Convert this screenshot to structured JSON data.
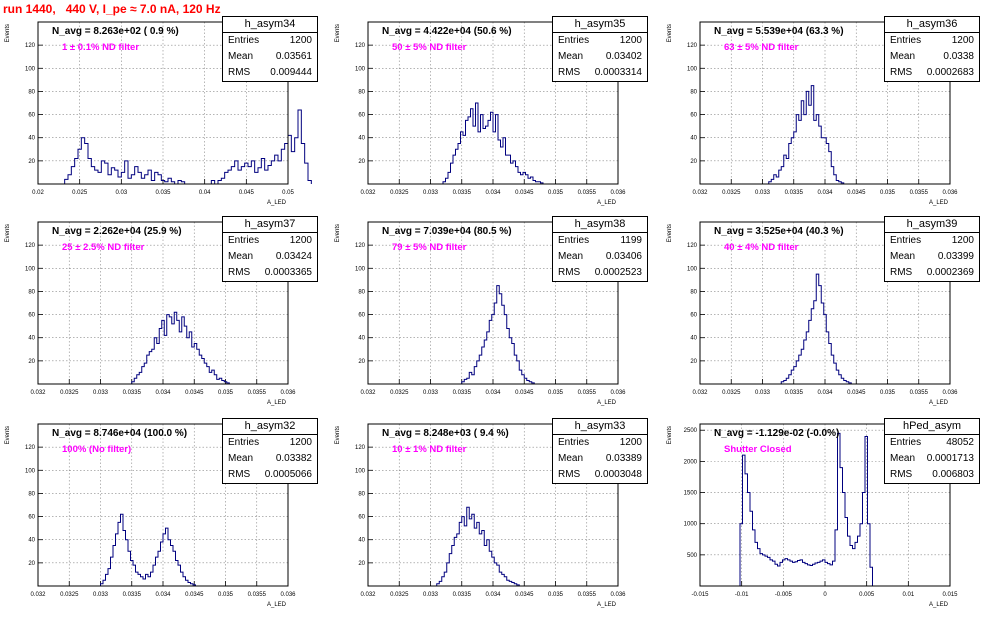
{
  "page_title": "run 1440,   440 V, I_pe ≈ 7.0 nA, 120 Hz",
  "axis_labels": {
    "y": "Events",
    "x": "A_LED"
  },
  "chart_data": [
    {
      "type": "histogram",
      "hist_name": "h_asym34",
      "navg": "N_avg = 8.263e+02 ( 0.9 %)",
      "filter": "1 ± 0.1% ND filter",
      "stats": {
        "entries": "1200",
        "mean": "0.03561",
        "rms": "0.009444"
      },
      "xlim": [
        0.02,
        0.05
      ],
      "ylim": [
        0,
        140
      ],
      "xticks": [
        "0.02",
        "0.025",
        "0.03",
        "0.035",
        "0.04",
        "0.045",
        "0.05"
      ],
      "yticks": [
        "20",
        "40",
        "60",
        "80",
        "100",
        "120"
      ],
      "bins": {
        "lo": 0.0232,
        "w": 0.0004,
        "values": [
          4,
          8,
          15,
          22,
          30,
          40,
          35,
          22,
          15,
          12,
          10,
          20,
          18,
          8,
          14,
          12,
          6,
          10,
          20,
          5,
          8,
          15,
          10,
          5,
          8,
          12,
          3,
          10,
          8,
          3,
          2,
          5,
          2,
          0,
          3,
          2,
          0,
          0,
          0,
          0,
          0,
          0,
          0,
          0,
          3,
          0,
          3,
          5,
          10,
          12,
          15,
          20,
          12,
          15,
          18,
          15,
          20,
          10,
          14,
          22,
          12,
          16,
          20,
          25,
          20,
          30,
          35,
          42,
          28,
          40,
          64,
          35,
          18,
          3
        ]
      }
    },
    {
      "type": "histogram",
      "hist_name": "h_asym35",
      "navg": "N_avg = 4.422e+04 (50.6 %)",
      "filter": "50 ± 5% ND filter",
      "stats": {
        "entries": "1200",
        "mean": "0.03402",
        "rms": "0.0003314"
      },
      "xlim": [
        0.032,
        0.036
      ],
      "ylim": [
        0,
        140
      ],
      "xticks": [
        "0.032",
        "0.0325",
        "0.033",
        "0.0335",
        "0.034",
        "0.0345",
        "0.035",
        "0.0355",
        "0.036"
      ],
      "yticks": [
        "20",
        "40",
        "60",
        "80",
        "100",
        "120"
      ],
      "bins": {
        "lo": 0.0332,
        "w": 4e-05,
        "values": [
          2,
          5,
          10,
          18,
          25,
          30,
          35,
          45,
          42,
          55,
          58,
          65,
          50,
          70,
          45,
          60,
          48,
          50,
          55,
          62,
          45,
          60,
          38,
          32,
          40,
          25,
          25,
          18,
          20,
          15,
          10,
          8,
          10,
          8,
          5,
          6,
          3,
          2,
          2,
          1
        ]
      }
    },
    {
      "type": "histogram",
      "hist_name": "h_asym36",
      "navg": "N_avg = 5.539e+04 (63.3 %)",
      "filter": "63 ± 5% ND filter",
      "stats": {
        "entries": "1200",
        "mean": "0.0338",
        "rms": "0.0002683"
      },
      "xlim": [
        0.032,
        0.036
      ],
      "ylim": [
        0,
        140
      ],
      "xticks": [
        "0.032",
        "0.0325",
        "0.033",
        "0.0335",
        "0.034",
        "0.0345",
        "0.035",
        "0.0355",
        "0.036"
      ],
      "yticks": [
        "20",
        "40",
        "60",
        "80",
        "100",
        "120"
      ],
      "bins": {
        "lo": 0.0331,
        "w": 4e-05,
        "values": [
          2,
          4,
          8,
          6,
          12,
          15,
          25,
          22,
          35,
          40,
          45,
          60,
          55,
          72,
          60,
          80,
          68,
          85,
          55,
          60,
          50,
          40,
          40,
          35,
          28,
          15,
          8,
          3,
          2,
          1
        ]
      }
    },
    {
      "type": "histogram",
      "hist_name": "h_asym37",
      "navg": "N_avg = 2.262e+04 (25.9 %)",
      "filter": "25 ± 2.5% ND filter",
      "stats": {
        "entries": "1200",
        "mean": "0.03424",
        "rms": "0.0003365"
      },
      "xlim": [
        0.032,
        0.036
      ],
      "ylim": [
        0,
        140
      ],
      "xticks": [
        "0.032",
        "0.0325",
        "0.033",
        "0.0335",
        "0.034",
        "0.0345",
        "0.035",
        "0.0355",
        "0.036"
      ],
      "yticks": [
        "20",
        "40",
        "60",
        "80",
        "100",
        "120"
      ],
      "bins": {
        "lo": 0.0335,
        "w": 4e-05,
        "values": [
          2,
          5,
          8,
          10,
          15,
          18,
          25,
          28,
          30,
          40,
          35,
          48,
          55,
          42,
          60,
          58,
          52,
          62,
          55,
          45,
          58,
          50,
          40,
          45,
          32,
          35,
          30,
          25,
          22,
          18,
          15,
          10,
          12,
          8,
          4,
          5,
          3,
          2,
          1
        ]
      }
    },
    {
      "type": "histogram",
      "hist_name": "h_asym38",
      "navg": "N_avg = 7.039e+04 (80.5 %)",
      "filter": "79 ± 5% ND filter",
      "stats": {
        "entries": "1199",
        "mean": "0.03406",
        "rms": "0.0002523"
      },
      "xlim": [
        0.032,
        0.036
      ],
      "ylim": [
        0,
        140
      ],
      "xticks": [
        "0.032",
        "0.0325",
        "0.033",
        "0.0335",
        "0.034",
        "0.0345",
        "0.035",
        "0.0355",
        "0.036"
      ],
      "yticks": [
        "20",
        "40",
        "60",
        "80",
        "100",
        "120"
      ],
      "bins": {
        "lo": 0.0335,
        "w": 4e-05,
        "values": [
          2,
          4,
          5,
          10,
          8,
          15,
          20,
          25,
          32,
          38,
          45,
          55,
          60,
          70,
          85,
          78,
          68,
          60,
          48,
          40,
          35,
          25,
          20,
          12,
          8,
          5,
          3,
          2,
          1
        ]
      }
    },
    {
      "type": "histogram",
      "hist_name": "h_asym39",
      "navg": "N_avg = 3.525e+04 (40.3 %)",
      "filter": "40 ± 4% ND filter",
      "stats": {
        "entries": "1200",
        "mean": "0.03399",
        "rms": "0.0002369"
      },
      "xlim": [
        0.032,
        0.036
      ],
      "ylim": [
        0,
        140
      ],
      "xticks": [
        "0.032",
        "0.0325",
        "0.033",
        "0.0335",
        "0.034",
        "0.0345",
        "0.035",
        "0.0355",
        "0.036"
      ],
      "yticks": [
        "20",
        "40",
        "60",
        "80",
        "100",
        "120"
      ],
      "bins": {
        "lo": 0.0333,
        "w": 4e-05,
        "values": [
          2,
          3,
          5,
          8,
          12,
          15,
          20,
          25,
          30,
          38,
          45,
          55,
          65,
          72,
          95,
          85,
          70,
          60,
          45,
          35,
          25,
          18,
          12,
          8,
          5,
          3,
          2,
          1
        ]
      }
    },
    {
      "type": "histogram",
      "hist_name": "h_asym32",
      "navg": "N_avg = 8.746e+04 (100.0 %)",
      "filter": "100% (No filter)",
      "stats": {
        "entries": "1200",
        "mean": "0.03382",
        "rms": "0.0005066"
      },
      "xlim": [
        0.032,
        0.036
      ],
      "ylim": [
        0,
        140
      ],
      "xticks": [
        "0.032",
        "0.0325",
        "0.033",
        "0.0335",
        "0.034",
        "0.0345",
        "0.035",
        "0.0355",
        "0.036"
      ],
      "yticks": [
        "20",
        "40",
        "60",
        "80",
        "100",
        "120"
      ],
      "bins": {
        "lo": 0.033,
        "w": 4e-05,
        "values": [
          2,
          5,
          10,
          15,
          25,
          35,
          45,
          55,
          62,
          48,
          40,
          30,
          22,
          18,
          12,
          10,
          8,
          6,
          10,
          8,
          12,
          18,
          25,
          30,
          38,
          45,
          50,
          40,
          35,
          30,
          22,
          18,
          12,
          8,
          5,
          3,
          2,
          1
        ]
      }
    },
    {
      "type": "histogram",
      "hist_name": "h_asym33",
      "navg": "N_avg = 8.248e+03 ( 9.4 %)",
      "filter": "10 ± 1% ND filter",
      "stats": {
        "entries": "1200",
        "mean": "0.03389",
        "rms": "0.0003048"
      },
      "xlim": [
        0.032,
        0.036
      ],
      "ylim": [
        0,
        140
      ],
      "xticks": [
        "0.032",
        "0.0325",
        "0.033",
        "0.0335",
        "0.034",
        "0.0345",
        "0.035",
        "0.0355",
        "0.036"
      ],
      "yticks": [
        "20",
        "40",
        "60",
        "80",
        "100",
        "120"
      ],
      "bins": {
        "lo": 0.0331,
        "w": 4e-05,
        "values": [
          2,
          4,
          8,
          12,
          20,
          28,
          35,
          42,
          45,
          55,
          60,
          52,
          68,
          58,
          62,
          50,
          55,
          45,
          48,
          35,
          40,
          30,
          25,
          20,
          18,
          12,
          10,
          8,
          5,
          4,
          3,
          2,
          1
        ]
      }
    },
    {
      "type": "histogram",
      "hist_name": "hPed_asym",
      "navg": "N_avg = -1.129e-02 (-0.0%)",
      "filter": "Shutter Closed",
      "stats": {
        "entries": "48052",
        "mean": "0.0001713",
        "rms": "0.006803"
      },
      "xlim": [
        -0.015,
        0.015
      ],
      "ylim": [
        0,
        2600
      ],
      "xticks": [
        "-0.015",
        "-0.01",
        "-0.005",
        "0",
        "0.005",
        "0.01",
        "0.015"
      ],
      "yticks": [
        "500",
        "1000",
        "1500",
        "2000",
        "2500"
      ],
      "bins": {
        "lo": -0.0105,
        "w": 0.0003,
        "values": [
          0,
          1000,
          2100,
          1800,
          1500,
          1200,
          900,
          700,
          600,
          520,
          500,
          480,
          460,
          420,
          400,
          350,
          320,
          380,
          420,
          440,
          420,
          400,
          380,
          390,
          410,
          420,
          380,
          360,
          340,
          330,
          350,
          370,
          380,
          400,
          420,
          380,
          360,
          340,
          400,
          900,
          2450,
          1900,
          1500,
          1100,
          800,
          650,
          600,
          700,
          800,
          1000,
          1500,
          2400,
          1000,
          300,
          0
        ]
      }
    }
  ]
}
